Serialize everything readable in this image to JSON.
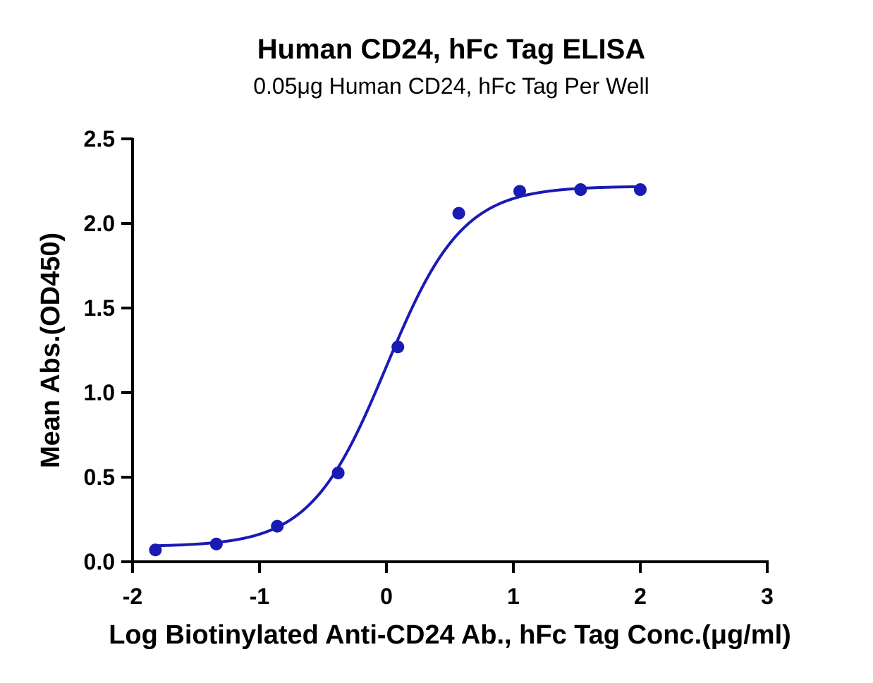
{
  "chart_data": {
    "type": "scatter",
    "title": "Human CD24, hFc Tag ELISA",
    "subtitle": "0.05μg Human CD24, hFc Tag Per Well",
    "xlabel": "Log Biotinylated Anti-CD24 Ab., hFc Tag Conc.(μg/ml)",
    "ylabel": "Mean Abs.(OD450)",
    "xlim": [
      -2,
      3
    ],
    "ylim": [
      0,
      2.5
    ],
    "x_ticks": [
      "-2",
      "-1",
      "0",
      "1",
      "2",
      "3"
    ],
    "y_ticks": [
      "0.0",
      "0.5",
      "1.0",
      "1.5",
      "2.0",
      "2.5"
    ],
    "grid": false,
    "color": "#1a1ab4",
    "series": [
      {
        "x": [
          -1.82,
          -1.34,
          -0.86,
          -0.38,
          0.09,
          0.57,
          1.05,
          1.53,
          2.0
        ],
        "y": [
          0.07,
          0.105,
          0.21,
          0.525,
          1.27,
          2.06,
          2.19,
          2.2,
          2.2
        ]
      }
    ],
    "fit": {
      "type": "4PL sigmoid",
      "bottom": 0.09,
      "top": 2.22,
      "logEC50": 0.0,
      "hillslope": 1.45,
      "x_range": [
        -1.82,
        2.0
      ]
    }
  }
}
